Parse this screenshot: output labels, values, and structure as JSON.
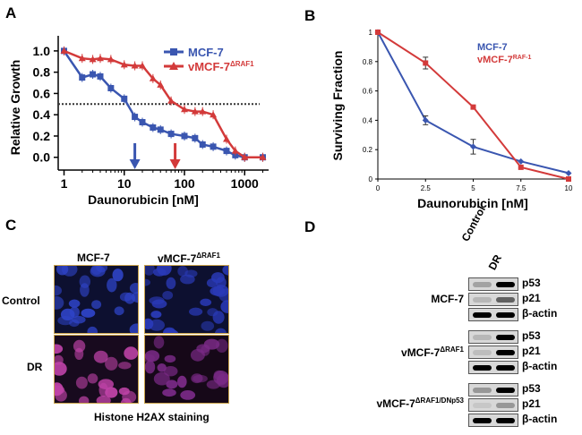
{
  "panels": {
    "a": "A",
    "b": "B",
    "c": "C",
    "d": "D"
  },
  "chart_data": [
    {
      "type": "line",
      "panel": "A",
      "xscale": "log",
      "xlabel": "Daunorubicin [nM]",
      "ylabel": "Relative Growth",
      "xlim": [
        0.8,
        2500
      ],
      "ylim": [
        -0.12,
        1.1
      ],
      "xticks": [
        1,
        10,
        100,
        1000
      ],
      "xtick_labels": [
        "1",
        "10",
        "100",
        "1000"
      ],
      "yticks": [
        0.0,
        0.2,
        0.4,
        0.6,
        0.8,
        1.0
      ],
      "ytick_labels": [
        "0.0",
        "0.2",
        "0.4",
        "0.6",
        "0.8",
        "1.0"
      ],
      "threshold": 0.5,
      "arrows": [
        {
          "series": "MCF-7",
          "x": 15,
          "color": "#3a56b0"
        },
        {
          "series": "vMCF-7ΔRAF1",
          "x": 70,
          "color": "#d33a3a"
        }
      ],
      "series": [
        {
          "name": "MCF-7",
          "legend_base": "MCF-7",
          "legend_sup": "",
          "color": "#3a56b0",
          "marker": "square",
          "x": [
            1,
            2,
            3,
            4,
            6,
            10,
            15,
            20,
            30,
            40,
            60,
            100,
            150,
            200,
            300,
            500,
            700,
            1000,
            2000
          ],
          "y": [
            1.0,
            0.75,
            0.78,
            0.76,
            0.65,
            0.55,
            0.38,
            0.33,
            0.28,
            0.26,
            0.22,
            0.2,
            0.18,
            0.12,
            0.1,
            0.06,
            0.02,
            0.0,
            0.0
          ]
        },
        {
          "name": "vMCF-7ΔRAF1",
          "legend_base": "vMCF-7",
          "legend_sup": "ΔRAF1",
          "color": "#d33a3a",
          "marker": "triangle",
          "x": [
            1,
            2,
            3,
            4,
            6,
            10,
            15,
            20,
            30,
            40,
            60,
            100,
            150,
            200,
            300,
            500,
            700,
            1000,
            2000
          ],
          "y": [
            1.0,
            0.93,
            0.92,
            0.93,
            0.92,
            0.87,
            0.86,
            0.86,
            0.74,
            0.68,
            0.53,
            0.45,
            0.43,
            0.43,
            0.4,
            0.17,
            0.06,
            0.0,
            0.0
          ]
        }
      ]
    },
    {
      "type": "line",
      "panel": "B",
      "xlabel": "Daunorubicin [nM]",
      "ylabel": "Surviving Fraction",
      "xlim": [
        0,
        10
      ],
      "ylim": [
        0,
        1
      ],
      "xticks": [
        0,
        2.5,
        5,
        7.5,
        10
      ],
      "xtick_labels": [
        "0",
        "2.5",
        "5",
        "7.5",
        "10"
      ],
      "yticks": [
        0,
        0.2,
        0.4,
        0.6,
        0.8,
        1
      ],
      "ytick_labels": [
        "0",
        "0.2",
        "0.4",
        "0.6",
        "0.8",
        "1"
      ],
      "series": [
        {
          "name": "MCF-7",
          "legend_base": "MCF-7",
          "legend_sup": "",
          "color": "#3a56b0",
          "marker": "diamond",
          "x": [
            0,
            2.5,
            5,
            7.5,
            10
          ],
          "y": [
            1.0,
            0.4,
            0.22,
            0.12,
            0.04
          ],
          "err": [
            0,
            0.03,
            0.05,
            0,
            0
          ]
        },
        {
          "name": "vMCF-7RAF-1",
          "legend_base": "vMCF-7",
          "legend_sup": "RAF-1",
          "color": "#d33a3a",
          "marker": "square",
          "x": [
            0,
            2.5,
            5,
            7.5,
            10
          ],
          "y": [
            1.0,
            0.79,
            0.49,
            0.08,
            0.0
          ],
          "err": [
            0,
            0.04,
            0,
            0,
            0
          ]
        }
      ]
    }
  ],
  "panel_c": {
    "col1": "MCF-7",
    "col2_base": "vMCF-7",
    "col2_sup": "ΔRAF1",
    "row1": "Control",
    "row2": "DR",
    "caption": "Histone H2AX staining"
  },
  "panel_d": {
    "col_labels": [
      "Control",
      "DR"
    ],
    "groups": [
      {
        "name_base": "MCF-7",
        "name_sup": "",
        "proteins": [
          "p53",
          "p21",
          "β-actin"
        ]
      },
      {
        "name_base": "vMCF-7",
        "name_sup": "ΔRAF1",
        "proteins": [
          "p53",
          "p21",
          "β-actin"
        ]
      },
      {
        "name_base": "vMCF-7",
        "name_sup": "ΔRAF1/DNp53",
        "proteins": [
          "p53",
          "p21",
          "β-actin"
        ]
      }
    ]
  }
}
